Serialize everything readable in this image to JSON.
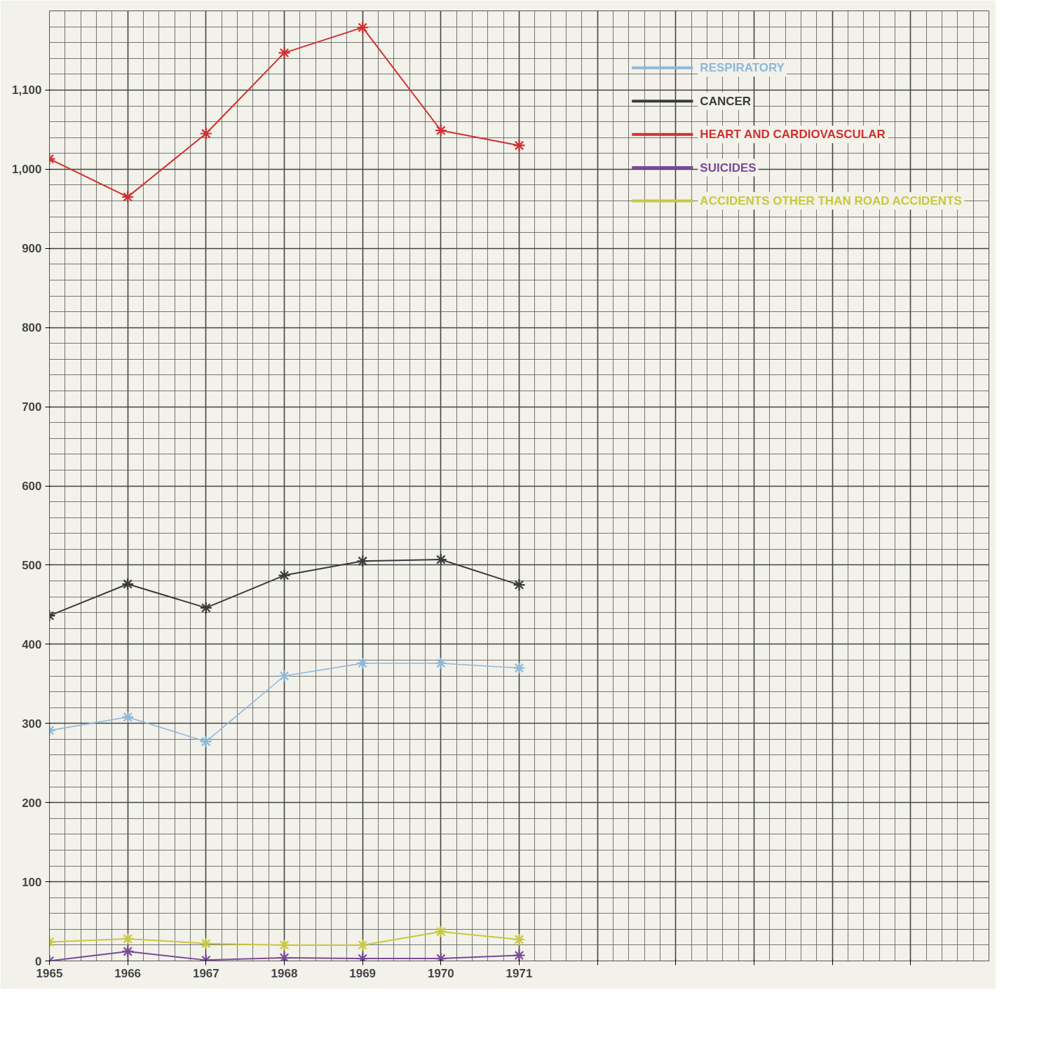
{
  "chart_data": {
    "type": "line",
    "x": [
      1965,
      1966,
      1967,
      1968,
      1969,
      1970,
      1971
    ],
    "series": [
      {
        "name": "RESPIRATORY",
        "color": "#8fb8d8",
        "values": [
          291,
          308,
          277,
          360,
          376,
          376,
          370
        ]
      },
      {
        "name": "CANCER",
        "color": "#3a3a3a",
        "values": [
          436,
          476,
          446,
          487,
          505,
          507,
          475
        ]
      },
      {
        "name": "HEART AND CARDIOVASCULAR",
        "color": "#d03030",
        "values": [
          1013,
          965,
          1045,
          1147,
          1179,
          1049,
          1030
        ]
      },
      {
        "name": "SUICIDES",
        "color": "#7a4a9a",
        "values": [
          0,
          12,
          1,
          4,
          3,
          3,
          7
        ]
      },
      {
        "name": "ACCIDENTS OTHER THAN ROAD ACCIDENTS",
        "color": "#c8c840",
        "values": [
          24,
          28,
          22,
          20,
          20,
          37,
          27
        ]
      }
    ],
    "xlim": [
      1965,
      1977
    ],
    "xticks": [
      1965,
      1966,
      1967,
      1968,
      1969,
      1970,
      1971,
      {
        "value": 1972,
        "label": null
      },
      {
        "value": 1973,
        "label": null
      },
      {
        "value": 1974,
        "label": null
      },
      {
        "value": 1975,
        "label": null
      },
      {
        "value": 1976,
        "label": null
      }
    ],
    "ylim": [
      0,
      1200
    ],
    "yticks": [
      0,
      100,
      200,
      300,
      400,
      500,
      600,
      700,
      800,
      900,
      {
        "value": 1000,
        "label": "1,000"
      },
      {
        "value": 1100,
        "label": "1,100"
      }
    ],
    "grid": true,
    "legend": "top right",
    "marker": "cross",
    "line_style": "solid"
  }
}
